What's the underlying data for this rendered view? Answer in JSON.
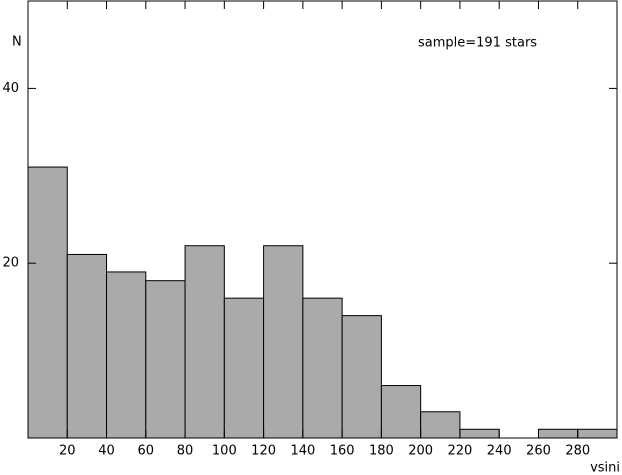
{
  "chart_data": {
    "type": "histogram",
    "bins": [
      0,
      20,
      40,
      60,
      80,
      100,
      120,
      140,
      160,
      180,
      200,
      220,
      240,
      260,
      280,
      300
    ],
    "values": [
      31,
      21,
      19,
      18,
      22,
      16,
      22,
      16,
      14,
      6,
      3,
      1,
      0,
      1,
      1
    ],
    "color": "#aaaaaa",
    "xlim": [
      0,
      300
    ],
    "xticks": [
      20,
      40,
      60,
      80,
      100,
      120,
      140,
      160,
      180,
      200,
      220,
      240,
      260,
      280
    ],
    "ylim": [
      0,
      50
    ],
    "yticks": [
      20,
      40
    ],
    "xlabel": "vsini",
    "ylabel": "N",
    "annotation": "sample=191 stars"
  }
}
